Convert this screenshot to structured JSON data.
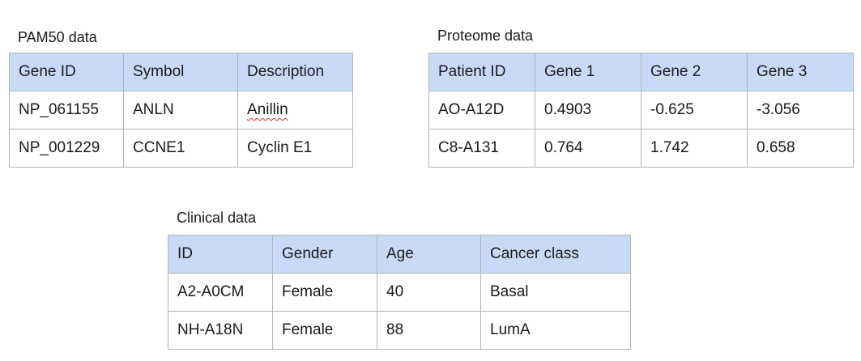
{
  "pam50": {
    "caption": "PAM50 data",
    "headers": [
      "Gene ID",
      "Symbol",
      "Description"
    ],
    "rows": [
      [
        "NP_061155",
        "ANLN",
        "Anillin"
      ],
      [
        "NP_001229",
        "CCNE1",
        "Cyclin E1"
      ]
    ]
  },
  "proteome": {
    "caption": "Proteome data",
    "headers": [
      "Patient ID",
      "Gene 1",
      "Gene 2",
      "Gene 3"
    ],
    "rows": [
      [
        "AO-A12D",
        "0.4903",
        "-0.625",
        "-3.056"
      ],
      [
        "C8-A131",
        "0.764",
        "1.742",
        "0.658"
      ]
    ]
  },
  "clinical": {
    "caption": "Clinical data",
    "headers": [
      "ID",
      "Gender",
      "Age",
      "Cancer class"
    ],
    "rows": [
      [
        "A2-A0CM",
        "Female",
        "40",
        "Basal"
      ],
      [
        "NH-A18N",
        "Female",
        "88",
        "LumA"
      ]
    ]
  },
  "colors": {
    "header_fill": "#c9daf8",
    "border": "#b3b3b3",
    "spellcheck_underline": "#d93025"
  }
}
